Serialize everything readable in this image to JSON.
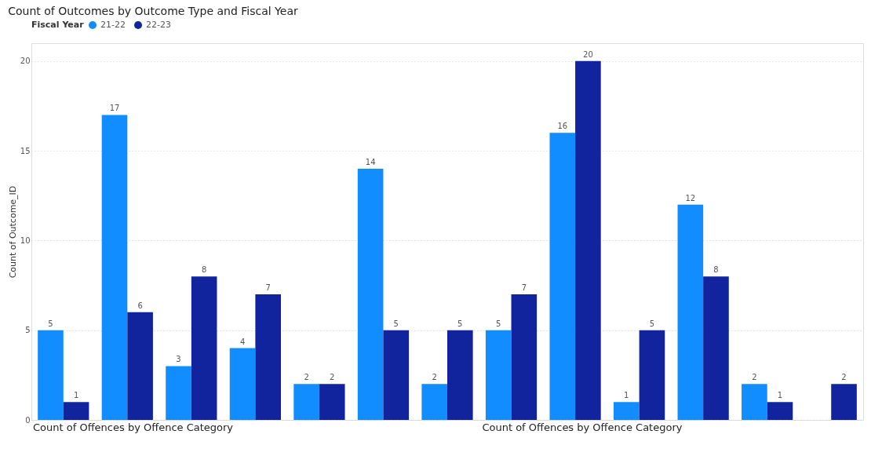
{
  "chart_data": {
    "type": "bar",
    "title": "Count of Outcomes by Outcome Type and Fiscal Year",
    "ylabel": "Count of Outcome_ID",
    "legend_title": "Fiscal Year",
    "legend": "top left",
    "categories": [
      null,
      null,
      null,
      null,
      null,
      null,
      null,
      null,
      null,
      null,
      null,
      null,
      null
    ],
    "series": [
      {
        "name": "21-22",
        "color": "#118dff",
        "values": [
          5,
          17,
          3,
          4,
          2,
          14,
          2,
          5,
          16,
          1,
          12,
          2,
          null
        ]
      },
      {
        "name": "22-23",
        "color": "#12239e",
        "values": [
          1,
          6,
          8,
          7,
          2,
          5,
          5,
          7,
          20,
          5,
          8,
          1,
          2
        ]
      }
    ],
    "ylim": [
      0,
      21
    ],
    "yticks": [
      0,
      5,
      10,
      15,
      20
    ],
    "grid": "y",
    "data_labels": true,
    "tick_labels": "y",
    "annotations": [
      "Count of Offences by Offence Category",
      "Count of Offences by Offence Category"
    ]
  }
}
